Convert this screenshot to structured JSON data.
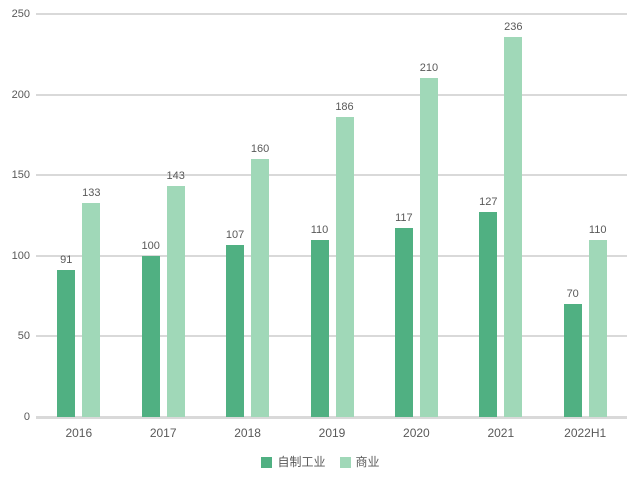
{
  "chart_data": {
    "type": "bar",
    "title": "",
    "xlabel": "",
    "ylabel": "",
    "categories": [
      "2016",
      "2017",
      "2018",
      "2019",
      "2020",
      "2021",
      "2022H1"
    ],
    "series": [
      {
        "name": "自制工业",
        "color": "#50B082",
        "values": [
          91,
          100,
          107,
          110,
          117,
          127,
          70
        ]
      },
      {
        "name": "商业",
        "color": "#A0D8B8",
        "values": [
          133,
          143,
          160,
          186,
          210,
          236,
          110
        ]
      }
    ],
    "ylim": [
      0,
      250
    ],
    "yticks": [
      0,
      50,
      100,
      150,
      200,
      250
    ],
    "grid": true,
    "value_labels": true,
    "legend_position": "bottom"
  },
  "colors": {
    "background": "#ffffff",
    "gridline": "#d9d9d9",
    "axis_text": "#595959",
    "value_label_text": "#595959"
  }
}
